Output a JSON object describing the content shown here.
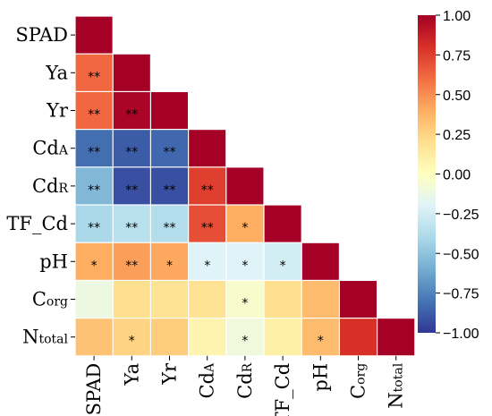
{
  "chart_data": {
    "type": "heatmap",
    "title": "",
    "variables": [
      {
        "key": "SPAD",
        "main": "SPAD",
        "sub": ""
      },
      {
        "key": "Ya",
        "main": "Ya",
        "sub": ""
      },
      {
        "key": "Yr",
        "main": "Yr",
        "sub": ""
      },
      {
        "key": "CdA",
        "main": "Cd",
        "sub": "A"
      },
      {
        "key": "CdR",
        "main": "Cd",
        "sub": "R"
      },
      {
        "key": "TF_Cd",
        "main": "TF_Cd",
        "sub": ""
      },
      {
        "key": "pH",
        "main": "pH",
        "sub": ""
      },
      {
        "key": "Corg",
        "main": "C",
        "sub": "org"
      },
      {
        "key": "Ntotal",
        "main": "N",
        "sub": "total"
      }
    ],
    "matrix": [
      [
        1.0
      ],
      [
        0.62,
        1.0
      ],
      [
        0.62,
        0.98,
        1.0
      ],
      [
        -0.82,
        -0.88,
        -0.84,
        1.0
      ],
      [
        -0.55,
        -0.92,
        -0.92,
        0.75,
        1.0
      ],
      [
        -0.4,
        -0.35,
        -0.37,
        0.7,
        0.4,
        1.0
      ],
      [
        0.4,
        0.45,
        0.42,
        -0.2,
        -0.2,
        -0.25,
        1.0
      ],
      [
        -0.12,
        0.2,
        0.18,
        0.18,
        -0.05,
        0.2,
        0.35,
        1.0
      ],
      [
        0.32,
        0.25,
        0.28,
        0.07,
        -0.1,
        0.1,
        0.35,
        0.8,
        1.0
      ]
    ],
    "significance": [
      [
        ""
      ],
      [
        "**",
        ""
      ],
      [
        "**",
        "**",
        ""
      ],
      [
        "**",
        "**",
        "**",
        ""
      ],
      [
        "**",
        "**",
        "**",
        "**",
        ""
      ],
      [
        "**",
        "**",
        "**",
        "**",
        "*",
        ""
      ],
      [
        "*",
        "**",
        "*",
        "*",
        "*",
        "*",
        ""
      ],
      [
        "",
        "",
        "",
        "",
        "*",
        "",
        "",
        ""
      ],
      [
        "",
        "*",
        "",
        "",
        "*",
        "",
        "*",
        "",
        ""
      ]
    ],
    "colorbar": {
      "min": -1.0,
      "max": 1.0,
      "ticks": [
        "1.00",
        "0.75",
        "0.50",
        "0.25",
        "0.00",
        "−0.25",
        "−0.50",
        "−0.75",
        "−1.00"
      ],
      "tick_values": [
        1.0,
        0.75,
        0.5,
        0.25,
        0.0,
        -0.25,
        -0.5,
        -0.75,
        -1.0
      ],
      "colormap": "RdYlBu_r",
      "stops": [
        "#313695",
        "#4575b4",
        "#74add1",
        "#abd9e9",
        "#e0f3f8",
        "#ffffbf",
        "#fee090",
        "#fdae61",
        "#f46d43",
        "#d73027",
        "#a50026"
      ]
    },
    "layout": "lower-triangle",
    "grid": false,
    "legend": "right"
  }
}
